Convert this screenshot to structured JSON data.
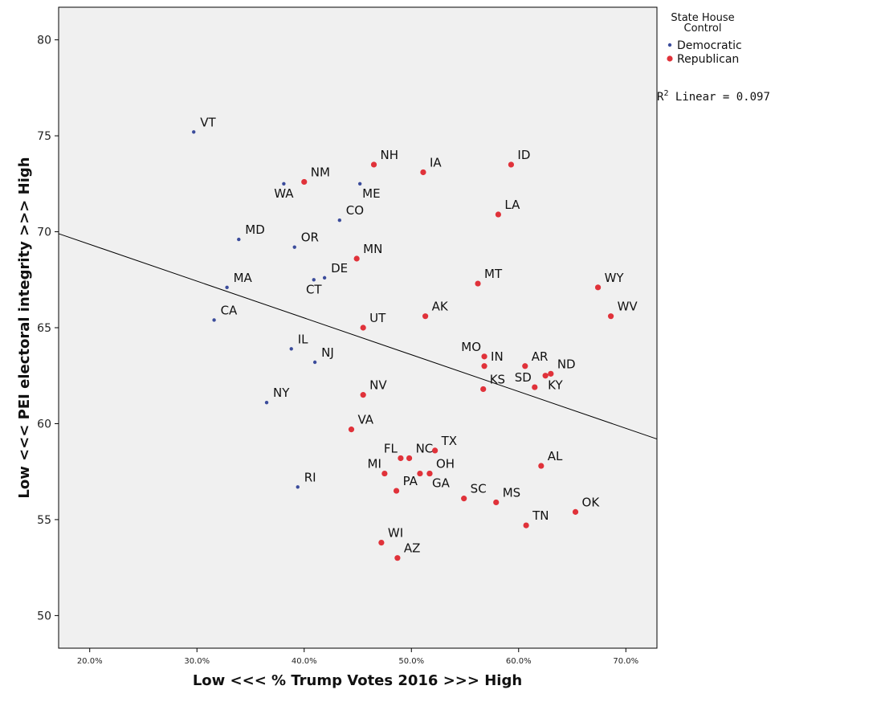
{
  "chart_data": {
    "type": "scatter",
    "title": "",
    "xlabel": "Low <<< % Trump Votes 2016 >>> High",
    "ylabel": "Low <<< PEI electoral integrity >>> High",
    "xlim": [
      17.1,
      72.9
    ],
    "ylim": [
      48.3,
      81.7
    ],
    "x_ticks": [
      20,
      30,
      40,
      50,
      60,
      70
    ],
    "x_tick_labels": [
      "20.0%",
      "30.0%",
      "40.0%",
      "50.0%",
      "60.0%",
      "70.0%"
    ],
    "y_ticks": [
      50,
      55,
      60,
      65,
      70,
      75,
      80
    ],
    "y_tick_labels": [
      "50",
      "55",
      "60",
      "65",
      "70",
      "75",
      "80"
    ],
    "grid": false,
    "legend": {
      "title_line1": "State House",
      "title_line2": "Control",
      "placement": "top-right",
      "entries": [
        {
          "name": "Democratic",
          "color": "#3b4c9b",
          "size": "small"
        },
        {
          "name": "Republican",
          "color": "#e0323a",
          "size": "large"
        }
      ]
    },
    "fit_line": {
      "annotation_prefix": "R",
      "annotation_sup": "2",
      "annotation_suffix": " Linear = 0.097",
      "r2": 0.097,
      "points": [
        [
          17.1,
          69.9
        ],
        [
          72.9,
          59.2
        ]
      ]
    },
    "series": [
      {
        "name": "Democratic",
        "color": "#3b4c9b",
        "points": [
          {
            "label": "VT",
            "x": 29.7,
            "y": 75.2,
            "pos": "ne"
          },
          {
            "label": "WA",
            "x": 38.1,
            "y": 72.5,
            "pos": "s"
          },
          {
            "label": "ME",
            "x": 45.2,
            "y": 72.5,
            "pos": "se"
          },
          {
            "label": "CO",
            "x": 43.3,
            "y": 70.6,
            "pos": "ne"
          },
          {
            "label": "MD",
            "x": 33.9,
            "y": 69.6,
            "pos": "ne"
          },
          {
            "label": "OR",
            "x": 39.1,
            "y": 69.2,
            "pos": "ne"
          },
          {
            "label": "DE",
            "x": 41.9,
            "y": 67.6,
            "pos": "ne"
          },
          {
            "label": "CT",
            "x": 40.9,
            "y": 67.5,
            "pos": "s"
          },
          {
            "label": "MA",
            "x": 32.8,
            "y": 67.1,
            "pos": "ne"
          },
          {
            "label": "CA",
            "x": 31.6,
            "y": 65.4,
            "pos": "ne"
          },
          {
            "label": "IL",
            "x": 38.8,
            "y": 63.9,
            "pos": "ne"
          },
          {
            "label": "NJ",
            "x": 41.0,
            "y": 63.2,
            "pos": "ne"
          },
          {
            "label": "NY",
            "x": 36.5,
            "y": 61.1,
            "pos": "ne"
          },
          {
            "label": "RI",
            "x": 39.4,
            "y": 56.7,
            "pos": "ne"
          },
          {
            "label": "",
            "x": 62.5,
            "y": 62.5,
            "pos": "none"
          }
        ]
      },
      {
        "name": "Republican",
        "color": "#e0323a",
        "points": [
          {
            "label": "NM",
            "x": 40.0,
            "y": 72.6,
            "pos": "ne"
          },
          {
            "label": "NH",
            "x": 46.5,
            "y": 73.5,
            "pos": "ne"
          },
          {
            "label": "IA",
            "x": 51.1,
            "y": 73.1,
            "pos": "ne"
          },
          {
            "label": "ID",
            "x": 59.3,
            "y": 73.5,
            "pos": "ne"
          },
          {
            "label": "LA",
            "x": 58.1,
            "y": 70.9,
            "pos": "ne"
          },
          {
            "label": "MN",
            "x": 44.9,
            "y": 68.6,
            "pos": "ne"
          },
          {
            "label": "MT",
            "x": 56.2,
            "y": 67.3,
            "pos": "ne"
          },
          {
            "label": "WY",
            "x": 67.4,
            "y": 67.1,
            "pos": "ne"
          },
          {
            "label": "WV",
            "x": 68.6,
            "y": 65.6,
            "pos": "ne"
          },
          {
            "label": "AK",
            "x": 51.3,
            "y": 65.6,
            "pos": "ne"
          },
          {
            "label": "UT",
            "x": 45.5,
            "y": 65.0,
            "pos": "ne"
          },
          {
            "label": "MO",
            "x": 56.8,
            "y": 63.5,
            "pos": "nw"
          },
          {
            "label": "IN",
            "x": 56.8,
            "y": 63.0,
            "pos": "ne"
          },
          {
            "label": "AR",
            "x": 60.6,
            "y": 63.0,
            "pos": "ne"
          },
          {
            "label": "ND",
            "x": 63.0,
            "y": 62.6,
            "pos": "ne"
          },
          {
            "label": "SD",
            "x": 61.5,
            "y": 61.9,
            "pos": "nw"
          },
          {
            "label": "KY",
            "x": 62.5,
            "y": 62.5,
            "pos": "se"
          },
          {
            "label": "KS",
            "x": 56.7,
            "y": 61.8,
            "pos": "ne"
          },
          {
            "label": "NV",
            "x": 45.5,
            "y": 61.5,
            "pos": "ne"
          },
          {
            "label": "VA",
            "x": 44.4,
            "y": 59.7,
            "pos": "ne"
          },
          {
            "label": "TX",
            "x": 52.2,
            "y": 58.6,
            "pos": "ne"
          },
          {
            "label": "NC",
            "x": 49.8,
            "y": 58.2,
            "pos": "ne"
          },
          {
            "label": "FL",
            "x": 49.0,
            "y": 58.2,
            "pos": "nw"
          },
          {
            "label": "AL",
            "x": 62.1,
            "y": 57.8,
            "pos": "ne"
          },
          {
            "label": "MI",
            "x": 47.5,
            "y": 57.4,
            "pos": "nw"
          },
          {
            "label": "OH",
            "x": 51.7,
            "y": 57.4,
            "pos": "ne"
          },
          {
            "label": "",
            "x": 50.8,
            "y": 57.4,
            "pos": "none"
          },
          {
            "label": "GA",
            "x": 51.7,
            "y": 57.4,
            "pos": "se"
          },
          {
            "label": "PA",
            "x": 48.6,
            "y": 56.5,
            "pos": "ne"
          },
          {
            "label": "SC",
            "x": 54.9,
            "y": 56.1,
            "pos": "ne"
          },
          {
            "label": "MS",
            "x": 57.9,
            "y": 55.9,
            "pos": "ne"
          },
          {
            "label": "OK",
            "x": 65.3,
            "y": 55.4,
            "pos": "ne"
          },
          {
            "label": "TN",
            "x": 60.7,
            "y": 54.7,
            "pos": "ne"
          },
          {
            "label": "WI",
            "x": 47.2,
            "y": 53.8,
            "pos": "ne"
          },
          {
            "label": "AZ",
            "x": 48.7,
            "y": 53.0,
            "pos": "ne"
          }
        ]
      }
    ]
  }
}
